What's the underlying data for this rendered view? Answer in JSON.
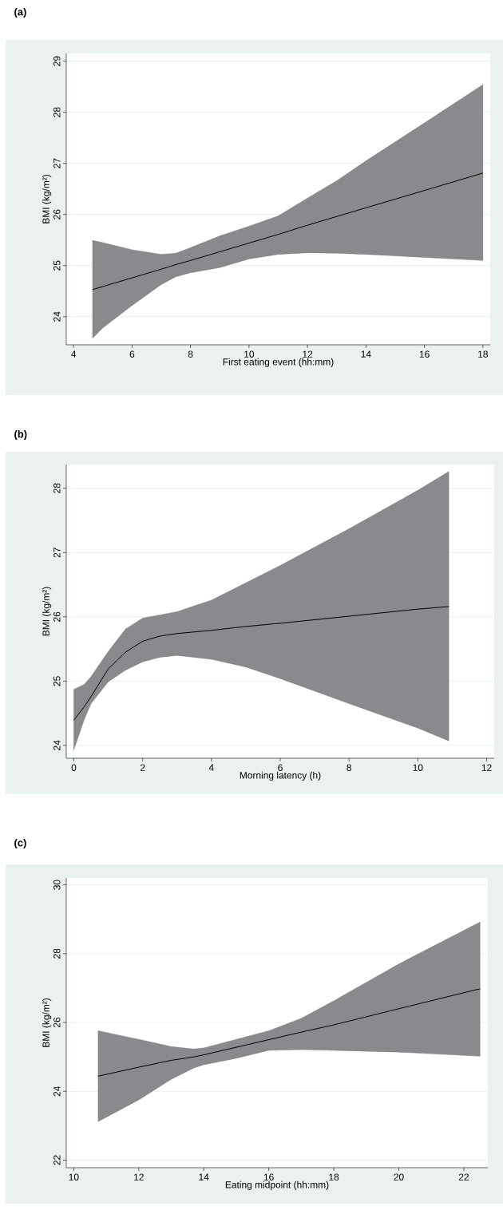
{
  "chart_data": [
    {
      "type": "line",
      "title": "(a)",
      "xlabel": "First eating event (hh:mm)",
      "ylabel": "BMI (kg/m²)",
      "xlim": [
        3.75,
        18.25
      ],
      "ylim": [
        23.45,
        29.15
      ],
      "xticks": [
        4,
        6,
        8,
        10,
        12,
        14,
        16,
        18
      ],
      "yticks": [
        24,
        25,
        26,
        27,
        28,
        29
      ],
      "grid": "y",
      "series": [
        {
          "color": "#000000",
          "x": [
            4.65,
            5,
            6,
            7,
            7.5,
            8,
            9,
            10,
            11,
            12,
            13,
            14,
            16,
            18
          ],
          "values": [
            24.53,
            24.59,
            24.76,
            24.93,
            25.02,
            25.1,
            25.27,
            25.44,
            25.61,
            25.79,
            25.96,
            26.13,
            26.47,
            26.81
          ],
          "upper": [
            25.49,
            25.45,
            25.31,
            25.22,
            25.24,
            25.35,
            25.58,
            25.77,
            25.97,
            26.32,
            26.66,
            27.05,
            27.79,
            28.54
          ],
          "lower": [
            23.58,
            23.78,
            24.22,
            24.63,
            24.78,
            24.86,
            24.96,
            25.13,
            25.22,
            25.25,
            25.24,
            25.22,
            25.16,
            25.1
          ]
        }
      ]
    },
    {
      "type": "line",
      "title": "(b)",
      "xlabel": "Morning latency (h)",
      "ylabel": "BMI (kg/m²)",
      "xlim": [
        -0.22,
        12.22
      ],
      "ylim": [
        23.8,
        28.37
      ],
      "xticks": [
        0,
        2,
        4,
        6,
        8,
        10,
        12
      ],
      "yticks": [
        24,
        25,
        26,
        27,
        28
      ],
      "grid": "y",
      "series": [
        {
          "color": "#000000",
          "x": [
            0,
            0.3,
            0.5,
            1,
            1.5,
            2,
            2.5,
            3,
            4,
            5,
            6,
            8,
            10,
            10.9
          ],
          "values": [
            24.39,
            24.6,
            24.76,
            25.19,
            25.45,
            25.62,
            25.7,
            25.74,
            25.79,
            25.85,
            25.9,
            26.01,
            26.12,
            26.16
          ],
          "upper": [
            24.87,
            24.95,
            25.07,
            25.46,
            25.81,
            25.98,
            26.03,
            26.08,
            26.26,
            26.53,
            26.8,
            27.37,
            27.97,
            28.26
          ],
          "lower": [
            23.93,
            24.4,
            24.65,
            24.99,
            25.17,
            25.3,
            25.37,
            25.4,
            25.34,
            25.22,
            25.04,
            24.65,
            24.27,
            24.07
          ]
        }
      ]
    },
    {
      "type": "line",
      "title": "(c)",
      "xlabel": "Eating midpoint (hh:mm)",
      "ylabel": "BMI (kg/m²)",
      "xlim": [
        9.77,
        22.74
      ],
      "ylim": [
        21.78,
        30.2
      ],
      "xticks": [
        10,
        12,
        14,
        16,
        18,
        20,
        22
      ],
      "yticks": [
        22,
        24,
        26,
        28,
        30
      ],
      "grid": "y",
      "series": [
        {
          "color": "#000000",
          "x": [
            10.75,
            12,
            13,
            13.7,
            14,
            15,
            16,
            17,
            18,
            20,
            22.5
          ],
          "values": [
            24.44,
            24.7,
            24.9,
            25.0,
            25.06,
            25.28,
            25.5,
            25.72,
            25.93,
            26.4,
            26.98
          ],
          "upper": [
            25.76,
            25.51,
            25.3,
            25.23,
            25.26,
            25.51,
            25.76,
            26.12,
            26.63,
            27.7,
            28.92
          ],
          "lower": [
            23.12,
            23.75,
            24.35,
            24.68,
            24.77,
            24.96,
            25.19,
            25.21,
            25.19,
            25.14,
            25.02
          ]
        }
      ]
    }
  ]
}
